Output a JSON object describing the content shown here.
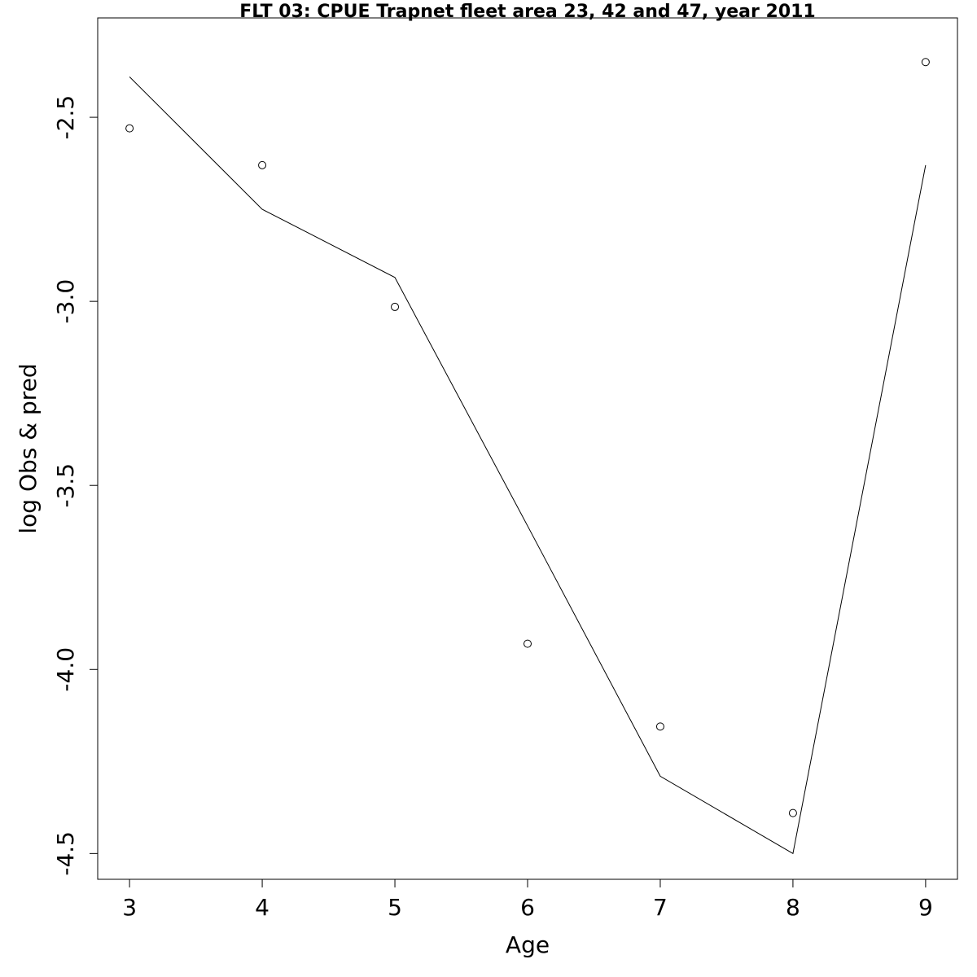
{
  "chart_data": {
    "type": "line",
    "title": "FLT 03: CPUE Trapnet fleet area 23, 42 and 47, year 2011",
    "xlabel": "Age",
    "ylabel": "log Obs & pred",
    "x": [
      3,
      4,
      5,
      6,
      7,
      8,
      9
    ],
    "xlim": [
      2.76,
      9.24
    ],
    "ylim": [
      -4.57,
      -2.23
    ],
    "xticks": [
      3,
      4,
      5,
      6,
      7,
      8,
      9
    ],
    "yticks": [
      -2.5,
      -3.0,
      -3.5,
      -4.0,
      -4.5
    ],
    "ytick_labels": [
      "-2.5",
      "-3.0",
      "-3.5",
      "-4.0",
      "-4.5"
    ],
    "grid": false,
    "series": [
      {
        "style": "points",
        "marker": "open-circle",
        "values": [
          -2.53,
          -2.63,
          -3.015,
          -3.93,
          -4.155,
          -4.39,
          -2.35
        ]
      },
      {
        "style": "line",
        "values": [
          -2.39,
          -2.75,
          -2.935,
          -3.61,
          -4.29,
          -4.5,
          -2.63
        ]
      }
    ]
  }
}
